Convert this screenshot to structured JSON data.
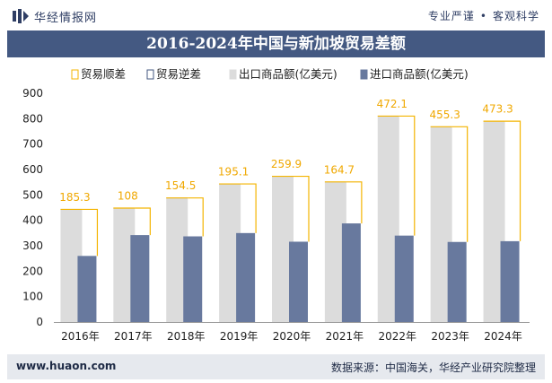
{
  "header": {
    "brand": "华经情报网",
    "tagline_left": "专业严谨",
    "tagline_sep": "•",
    "tagline_right": "客观科学"
  },
  "footer": {
    "site": "www.huaon.com",
    "source": "数据来源：中国海关，华经产业研究院整理"
  },
  "colors": {
    "title_bg": "#445982",
    "export": "#dcdcdc",
    "import": "#68799e",
    "surplus": "#f4b400"
  },
  "chart_data": {
    "type": "bar",
    "title": "2016-2024年中国与新加坡贸易差额",
    "categories": [
      "2016年",
      "2017年",
      "2018年",
      "2019年",
      "2020年",
      "2021年",
      "2022年",
      "2023年",
      "2024年"
    ],
    "series": [
      {
        "name": "出口商品额(亿美元)",
        "values": [
          445,
          450,
          490,
          545,
          575,
          553,
          812,
          770,
          792
        ]
      },
      {
        "name": "进口商品额(亿美元)",
        "values": [
          260,
          342,
          337,
          350,
          316,
          388,
          340,
          315,
          318
        ]
      }
    ],
    "surplus": {
      "name": "贸易顺差",
      "values": [
        185.3,
        108,
        154.5,
        195.1,
        259.9,
        164.7,
        472.1,
        455.3,
        473.3
      ],
      "labels": [
        "185.3",
        "108",
        "154.5",
        "195.1",
        "259.9",
        "164.7",
        "472.1",
        "455.3",
        "473.3"
      ]
    },
    "deficit": {
      "name": "贸易逆差",
      "values": []
    },
    "yticks": [
      "0",
      "100",
      "200",
      "300",
      "400",
      "500",
      "600",
      "700",
      "800",
      "900"
    ],
    "ylim": [
      0,
      900
    ],
    "legend_position": "top"
  }
}
